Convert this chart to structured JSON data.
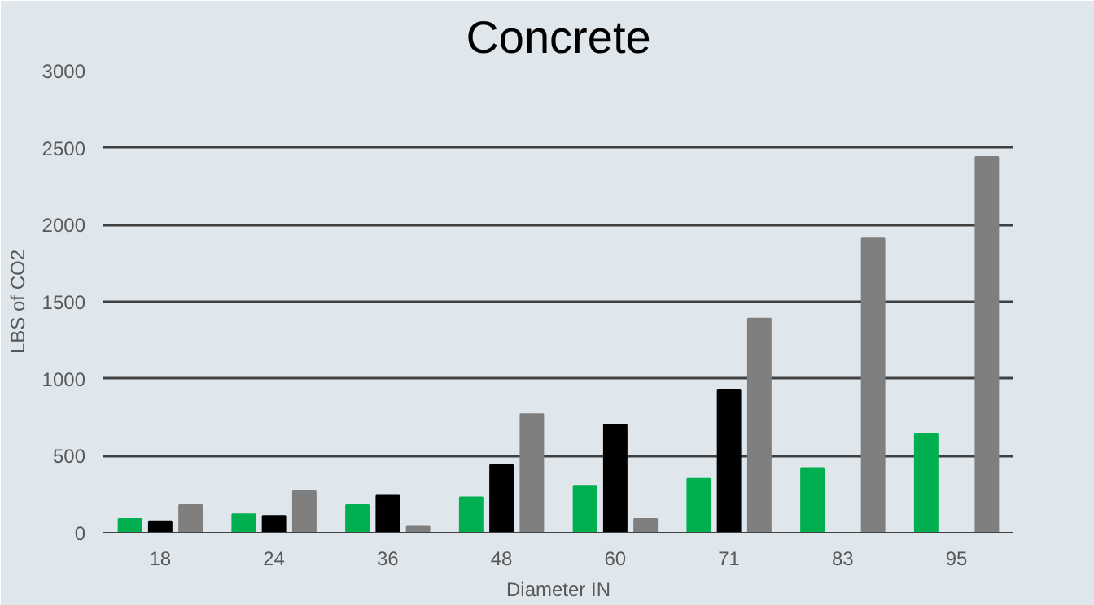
{
  "chart_data": {
    "type": "bar",
    "title": "Concrete",
    "xlabel": "Diameter IN",
    "ylabel": "LBS of CO2",
    "categories": [
      "18",
      "24",
      "36",
      "48",
      "60",
      "71",
      "83",
      "95"
    ],
    "series": [
      {
        "color": "#00b050",
        "values": [
          90,
          120,
          180,
          230,
          300,
          350,
          420,
          640
        ]
      },
      {
        "color": "#000000",
        "values": [
          70,
          110,
          240,
          440,
          700,
          930,
          null,
          null
        ]
      },
      {
        "color": "#7f7f7f",
        "values": [
          180,
          270,
          40,
          770,
          90,
          1390,
          1910,
          2440
        ]
      }
    ],
    "ylim": [
      0,
      3000
    ],
    "yticks": [
      0,
      500,
      1000,
      1500,
      2000,
      2500,
      3000
    ],
    "grid": "y"
  }
}
